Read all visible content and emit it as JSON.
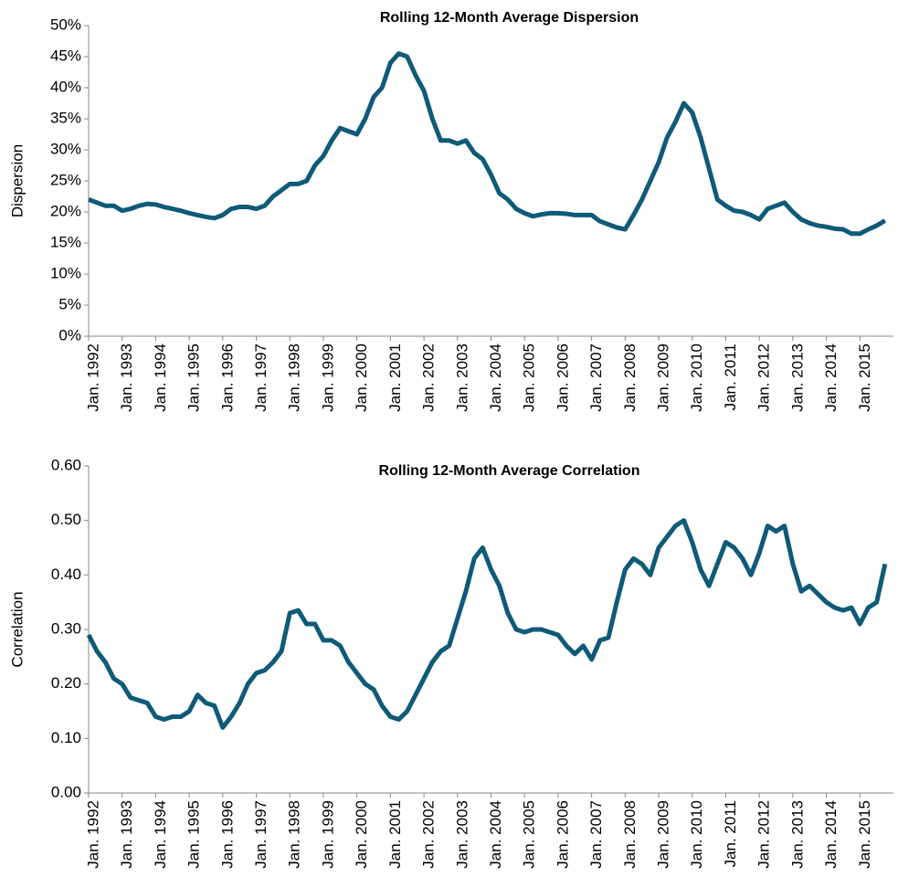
{
  "chart_data": [
    {
      "type": "line",
      "title": "Rolling 12-Month Average Dispersion",
      "y_label": "Dispersion",
      "categories": [
        "Jan. 1992",
        null,
        null,
        null,
        "Jan. 1993",
        null,
        null,
        null,
        "Jan. 1994",
        null,
        null,
        null,
        "Jan. 1995",
        null,
        null,
        null,
        "Jan. 1996",
        null,
        null,
        null,
        "Jan. 1997",
        null,
        null,
        null,
        "Jan. 1998",
        null,
        null,
        null,
        "Jan. 1999",
        null,
        null,
        null,
        "Jan. 2000",
        null,
        null,
        null,
        "Jan. 2001",
        null,
        null,
        null,
        "Jan. 2002",
        null,
        null,
        null,
        "Jan. 2003",
        null,
        null,
        null,
        "Jan. 2004",
        null,
        null,
        null,
        "Jan. 2005",
        null,
        null,
        null,
        "Jan. 2006",
        null,
        null,
        null,
        "Jan. 2007",
        null,
        null,
        null,
        "Jan. 2008",
        null,
        null,
        null,
        "Jan. 2009",
        null,
        null,
        null,
        "Jan. 2010",
        null,
        null,
        null,
        "Jan. 2011",
        null,
        null,
        null,
        "Jan. 2012",
        null,
        null,
        null,
        "Jan. 2013",
        null,
        null,
        null,
        "Jan. 2014",
        null,
        null,
        null,
        "Jan. 2015",
        null,
        null,
        null
      ],
      "series": [
        {
          "name": "Dispersion",
          "color": "#0e5a78",
          "values": [
            22,
            21.5,
            21,
            21,
            20.2,
            20.5,
            21,
            21.3,
            21.2,
            20.8,
            20.5,
            20.2,
            19.8,
            19.5,
            19.2,
            19,
            19.5,
            20.5,
            20.8,
            20.8,
            20.5,
            21,
            22.5,
            23.5,
            24.5,
            24.5,
            25,
            27.5,
            29,
            31.5,
            33.5,
            33,
            32.5,
            35,
            38.5,
            40,
            44,
            45.5,
            45,
            42,
            39.5,
            35,
            31.5,
            31.5,
            31,
            31.5,
            29.5,
            28.5,
            26,
            23,
            22,
            20.5,
            19.8,
            19.3,
            19.6,
            19.8,
            19.8,
            19.7,
            19.5,
            19.5,
            19.5,
            18.5,
            18,
            17.5,
            17.2,
            19.5,
            22,
            25,
            28,
            32,
            34.5,
            37.5,
            36,
            32,
            27,
            22,
            21,
            20.2,
            20,
            19.5,
            18.8,
            20.5,
            21,
            21.5,
            20,
            18.8,
            18.2,
            17.8,
            17.6,
            17.3,
            17.2,
            16.5,
            16.5,
            17.2,
            17.8,
            18.6
          ]
        }
      ],
      "ylim": [
        0,
        50
      ],
      "yticks": [
        {
          "value": 0,
          "label": "0%"
        },
        {
          "value": 5,
          "label": "5%"
        },
        {
          "value": 10,
          "label": "10%"
        },
        {
          "value": 15,
          "label": "15%"
        },
        {
          "value": 20,
          "label": "20%"
        },
        {
          "value": 25,
          "label": "25%"
        },
        {
          "value": 30,
          "label": "30%"
        },
        {
          "value": 35,
          "label": "35%"
        },
        {
          "value": 40,
          "label": "40%"
        },
        {
          "value": 45,
          "label": "45%"
        },
        {
          "value": 50,
          "label": "50%"
        }
      ]
    },
    {
      "type": "line",
      "title": "Rolling 12-Month Average Correlation",
      "y_label": "Correlation",
      "categories": [
        "Jan. 1992",
        null,
        null,
        null,
        "Jan. 1993",
        null,
        null,
        null,
        "Jan. 1994",
        null,
        null,
        null,
        "Jan. 1995",
        null,
        null,
        null,
        "Jan. 1996",
        null,
        null,
        null,
        "Jan. 1997",
        null,
        null,
        null,
        "Jan. 1998",
        null,
        null,
        null,
        "Jan. 1999",
        null,
        null,
        null,
        "Jan. 2000",
        null,
        null,
        null,
        "Jan. 2001",
        null,
        null,
        null,
        "Jan. 2002",
        null,
        null,
        null,
        "Jan. 2003",
        null,
        null,
        null,
        "Jan. 2004",
        null,
        null,
        null,
        "Jan. 2005",
        null,
        null,
        null,
        "Jan. 2006",
        null,
        null,
        null,
        "Jan. 2007",
        null,
        null,
        null,
        "Jan. 2008",
        null,
        null,
        null,
        "Jan. 2009",
        null,
        null,
        null,
        "Jan. 2010",
        null,
        null,
        null,
        "Jan. 2011",
        null,
        null,
        null,
        "Jan. 2012",
        null,
        null,
        null,
        "Jan. 2013",
        null,
        null,
        null,
        "Jan. 2014",
        null,
        null,
        null,
        "Jan. 2015",
        null,
        null,
        null
      ],
      "series": [
        {
          "name": "Correlation",
          "color": "#0e5a78",
          "values": [
            0.29,
            0.26,
            0.24,
            0.21,
            0.2,
            0.175,
            0.17,
            0.165,
            0.14,
            0.135,
            0.14,
            0.14,
            0.15,
            0.18,
            0.165,
            0.16,
            0.12,
            0.14,
            0.165,
            0.2,
            0.22,
            0.225,
            0.24,
            0.26,
            0.33,
            0.335,
            0.31,
            0.31,
            0.28,
            0.28,
            0.27,
            0.24,
            0.22,
            0.2,
            0.19,
            0.16,
            0.14,
            0.135,
            0.15,
            0.18,
            0.21,
            0.24,
            0.26,
            0.27,
            0.32,
            0.37,
            0.43,
            0.45,
            0.41,
            0.38,
            0.33,
            0.3,
            0.295,
            0.3,
            0.3,
            0.295,
            0.29,
            0.27,
            0.255,
            0.27,
            0.245,
            0.28,
            0.285,
            0.35,
            0.41,
            0.43,
            0.42,
            0.4,
            0.45,
            0.47,
            0.49,
            0.5,
            0.46,
            0.41,
            0.38,
            0.42,
            0.46,
            0.45,
            0.43,
            0.4,
            0.44,
            0.49,
            0.48,
            0.49,
            0.42,
            0.37,
            0.38,
            0.365,
            0.35,
            0.34,
            0.335,
            0.34,
            0.31,
            0.34,
            0.35,
            0.42
          ]
        }
      ],
      "ylim": [
        0,
        0.6
      ],
      "yticks": [
        {
          "value": 0,
          "label": "0.00"
        },
        {
          "value": 0.1,
          "label": "0.10"
        },
        {
          "value": 0.2,
          "label": "0.20"
        },
        {
          "value": 0.3,
          "label": "0.30"
        },
        {
          "value": 0.4,
          "label": "0.40"
        },
        {
          "value": 0.5,
          "label": "0.50"
        },
        {
          "value": 0.6,
          "label": "0.60"
        }
      ]
    }
  ]
}
